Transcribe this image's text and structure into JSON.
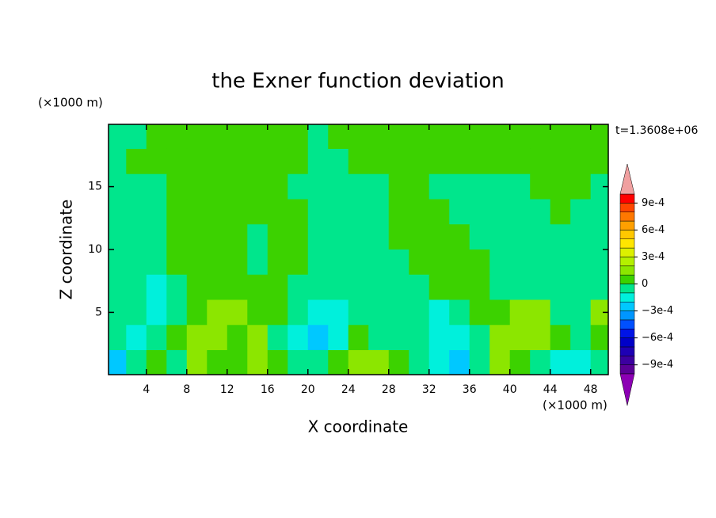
{
  "chart_data": {
    "type": "contour",
    "title": "the Exner function deviation",
    "x_unit": "(×1000 m)",
    "y_unit": "(×1000 m)",
    "xlabel": "X coordinate",
    "ylabel": "Z coordinate",
    "annotation": "t=1.3608e+06",
    "xlim": [
      0.25,
      49.75
    ],
    "ylim": [
      0.05,
      19.95
    ],
    "xticks": [
      4,
      8,
      12,
      16,
      20,
      24,
      28,
      32,
      36,
      40,
      44,
      48
    ],
    "yticks": [
      5,
      10,
      15
    ],
    "x": [
      1,
      3,
      5,
      7,
      9,
      11,
      13,
      15,
      17,
      19,
      21,
      23,
      25,
      27,
      29,
      31,
      33,
      35,
      37,
      39,
      41,
      43,
      45,
      47,
      49
    ],
    "y": [
      19,
      17,
      15,
      13,
      11,
      9,
      7,
      5,
      3,
      1
    ],
    "values": [
      [
        -5e-05,
        -5e-05,
        5e-05,
        5e-05,
        5e-05,
        5e-05,
        5e-05,
        5e-05,
        5e-05,
        5e-05,
        -5e-05,
        5e-05,
        5e-05,
        5e-05,
        5e-05,
        5e-05,
        5e-05,
        5e-05,
        5e-05,
        5e-05,
        5e-05,
        5e-05,
        5e-05,
        5e-05,
        5e-05
      ],
      [
        -5e-05,
        5e-05,
        5e-05,
        5e-05,
        5e-05,
        5e-05,
        5e-05,
        5e-05,
        5e-05,
        5e-05,
        -5e-05,
        -5e-05,
        5e-05,
        5e-05,
        5e-05,
        5e-05,
        5e-05,
        5e-05,
        5e-05,
        5e-05,
        5e-05,
        5e-05,
        5e-05,
        5e-05,
        5e-05
      ],
      [
        -5e-05,
        -5e-05,
        -5e-05,
        5e-05,
        5e-05,
        5e-05,
        5e-05,
        5e-05,
        5e-05,
        -5e-05,
        -5e-05,
        -5e-05,
        -5e-05,
        -5e-05,
        5e-05,
        5e-05,
        -5e-05,
        -5e-05,
        -5e-05,
        -5e-05,
        -5e-05,
        5e-05,
        5e-05,
        5e-05,
        -5e-05
      ],
      [
        -5e-05,
        -5e-05,
        -5e-05,
        5e-05,
        5e-05,
        5e-05,
        5e-05,
        5e-05,
        5e-05,
        5e-05,
        -5e-05,
        -5e-05,
        -5e-05,
        -5e-05,
        5e-05,
        5e-05,
        5e-05,
        -5e-05,
        -5e-05,
        -5e-05,
        -5e-05,
        -5e-05,
        5e-05,
        -5e-05,
        -5e-05
      ],
      [
        -5e-05,
        -5e-05,
        -5e-05,
        5e-05,
        5e-05,
        5e-05,
        5e-05,
        -5e-05,
        5e-05,
        5e-05,
        -5e-05,
        -5e-05,
        -5e-05,
        -5e-05,
        5e-05,
        5e-05,
        5e-05,
        5e-05,
        -5e-05,
        -5e-05,
        -5e-05,
        -5e-05,
        -5e-05,
        -5e-05,
        -5e-05
      ],
      [
        -5e-05,
        -5e-05,
        -5e-05,
        5e-05,
        5e-05,
        5e-05,
        5e-05,
        -5e-05,
        5e-05,
        5e-05,
        -5e-05,
        -5e-05,
        -5e-05,
        -5e-05,
        -5e-05,
        5e-05,
        5e-05,
        5e-05,
        5e-05,
        -5e-05,
        -5e-05,
        -5e-05,
        -5e-05,
        -5e-05,
        -5e-05
      ],
      [
        -5e-05,
        -5e-05,
        -0.00015,
        -5e-05,
        5e-05,
        5e-05,
        5e-05,
        5e-05,
        5e-05,
        -5e-05,
        -5e-05,
        -5e-05,
        -5e-05,
        -5e-05,
        -5e-05,
        -5e-05,
        5e-05,
        5e-05,
        5e-05,
        -5e-05,
        -5e-05,
        -5e-05,
        -5e-05,
        -5e-05,
        -5e-05
      ],
      [
        -5e-05,
        -5e-05,
        -0.00015,
        -5e-05,
        5e-05,
        0.00015,
        0.00015,
        5e-05,
        5e-05,
        -5e-05,
        -0.00015,
        -0.00015,
        -5e-05,
        -5e-05,
        -5e-05,
        -5e-05,
        -0.00015,
        -5e-05,
        5e-05,
        5e-05,
        0.00015,
        0.00015,
        -5e-05,
        -5e-05,
        0.00015
      ],
      [
        -5e-05,
        -0.00015,
        -5e-05,
        5e-05,
        0.00015,
        0.00015,
        5e-05,
        0.00015,
        -5e-05,
        -0.00015,
        -0.00025,
        -0.00015,
        5e-05,
        -5e-05,
        -5e-05,
        -5e-05,
        -0.00015,
        -0.00015,
        -5e-05,
        0.00015,
        0.00015,
        0.00015,
        5e-05,
        -5e-05,
        5e-05
      ],
      [
        -0.00025,
        -5e-05,
        5e-05,
        -5e-05,
        0.00015,
        5e-05,
        5e-05,
        0.00015,
        5e-05,
        -5e-05,
        -5e-05,
        5e-05,
        0.00015,
        0.00015,
        5e-05,
        -5e-05,
        -0.00015,
        -0.00025,
        -5e-05,
        0.00015,
        5e-05,
        -5e-05,
        -0.00015,
        -0.00015,
        -5e-05
      ]
    ],
    "levels": [
      -0.001,
      -0.0009,
      -0.0008,
      -0.0007,
      -0.0006,
      -0.0005,
      -0.0004,
      -0.0003,
      -0.0002,
      -0.0001,
      0,
      0.0001,
      0.0002,
      0.0003,
      0.0004,
      0.0005,
      0.0006,
      0.0007,
      0.0008,
      0.0009,
      0.001
    ],
    "colors": [
      "#8c00b4",
      "#5a0096",
      "#3c00a0",
      "#1e00b4",
      "#0000c8",
      "#0014e6",
      "#0050ff",
      "#0096ff",
      "#00c8ff",
      "#00f0dc",
      "#00e68c",
      "#3cd200",
      "#8ce600",
      "#b4f000",
      "#dcf000",
      "#ffe600",
      "#ffc800",
      "#ffa000",
      "#ff7800",
      "#ff4600",
      "#ff0000",
      "#f0a0a0"
    ],
    "colorbar_ticks": [
      {
        "value": 0.0009,
        "label": "9e-4"
      },
      {
        "value": 0.0006,
        "label": "6e-4"
      },
      {
        "value": 0.0003,
        "label": "3e-4"
      },
      0,
      {
        "value": -0.0003,
        "label": "−3e-4"
      },
      {
        "value": -0.0006,
        "label": "−6e-4"
      },
      {
        "value": -0.0009,
        "label": "−9e-4"
      }
    ]
  }
}
